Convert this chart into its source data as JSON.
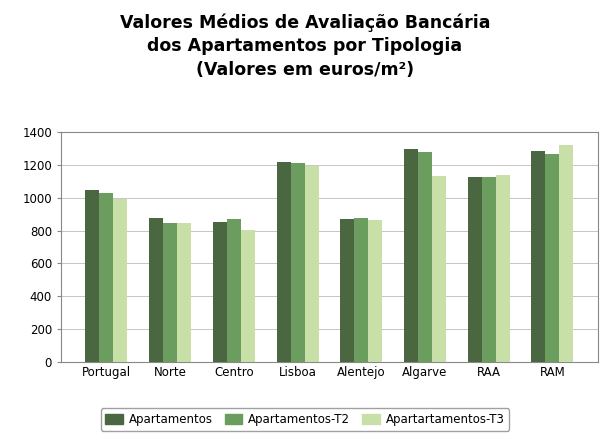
{
  "title_line1": "Valores Médios de Avaliação Bancária",
  "title_line2": "dos Apartamentos por Tipologia",
  "title_line3": "(Valores em euros/m²)",
  "categories": [
    "Portugal",
    "Norte",
    "Centro",
    "Lisboa",
    "Alentejo",
    "Algarve",
    "RAA",
    "RAM"
  ],
  "series": {
    "Apartamentos": [
      1050,
      875,
      855,
      1220,
      870,
      1295,
      1130,
      1285
    ],
    "Apartamentos-T2": [
      1030,
      845,
      870,
      1215,
      875,
      1280,
      1130,
      1265
    ],
    "Apartartamentos-T3": [
      995,
      845,
      805,
      1195,
      865,
      1135,
      1140,
      1325
    ]
  },
  "colors": {
    "Apartamentos": "#4a6741",
    "Apartamentos-T2": "#6b9e5e",
    "Apartartamentos-T3": "#c8dfa8"
  },
  "ylim": [
    0,
    1400
  ],
  "yticks": [
    0,
    200,
    400,
    600,
    800,
    1000,
    1200,
    1400
  ],
  "bar_width": 0.22,
  "background_color": "#ffffff",
  "plot_bg_color": "#ffffff",
  "grid_color": "#bbbbbb",
  "title_fontsize": 12.5,
  "tick_fontsize": 8.5,
  "legend_fontsize": 8.5
}
